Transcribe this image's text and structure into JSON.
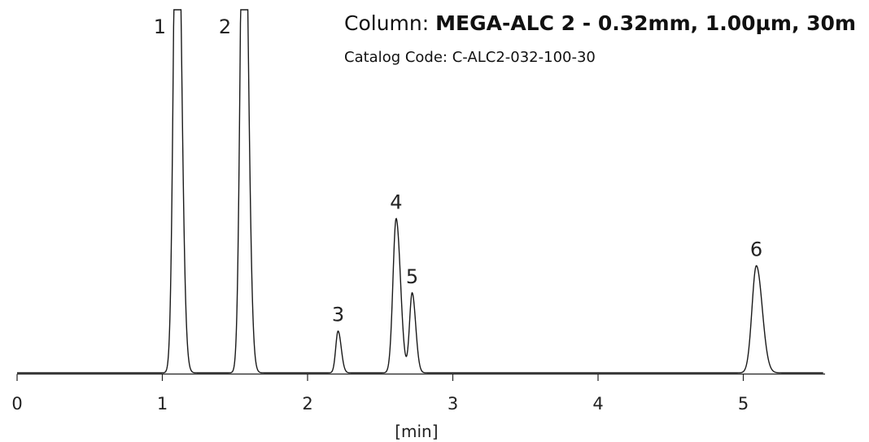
{
  "header": {
    "column_label": "Column:",
    "column_value": "MEGA-ALC 2 - 0.32mm, 1.00µm, 30m",
    "catalog_label": "Catalog Code:",
    "catalog_value": "C-ALC2-032-100-30"
  },
  "chart_data": {
    "type": "line",
    "title": "",
    "xlabel": "[min]",
    "ylabel": "",
    "xlim": [
      0,
      5.55
    ],
    "x_ticks": [
      0,
      1,
      2,
      3,
      4,
      5
    ],
    "x_tick_labels": [
      "0",
      "1",
      "2",
      "3",
      "4",
      "5"
    ],
    "grid": false,
    "legend": "none",
    "baseline": 0,
    "ylim": [
      0,
      100
    ],
    "peaks": [
      {
        "label": "1",
        "retention_time": 1.1,
        "height": 100,
        "clipped": true
      },
      {
        "label": "2",
        "retention_time": 1.56,
        "height": 100,
        "clipped": true
      },
      {
        "label": "3",
        "retention_time": 2.21,
        "height": 11.5
      },
      {
        "label": "4",
        "retention_time": 2.61,
        "height": 42.5
      },
      {
        "label": "5",
        "retention_time": 2.72,
        "height": 22
      },
      {
        "label": "6",
        "retention_time": 5.09,
        "height": 29.5
      }
    ],
    "line_color": "#1a1a1a"
  }
}
